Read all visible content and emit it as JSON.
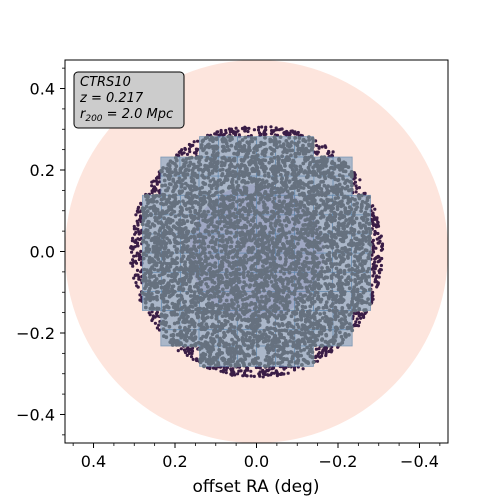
{
  "chart_data": {
    "type": "scatter",
    "title": "",
    "xlabel": "offset RA (deg)",
    "ylabel": "",
    "xlim": [
      0.47,
      -0.47
    ],
    "ylim": [
      -0.47,
      0.47
    ],
    "x_inverted": true,
    "x_ticks": [
      0.4,
      0.2,
      0.0,
      -0.2,
      -0.4
    ],
    "x_tick_labels": [
      "0.4",
      "0.2",
      "0.0",
      "−0.2",
      "−0.4"
    ],
    "y_ticks": [
      0.4,
      0.2,
      0.0,
      -0.2,
      -0.4
    ],
    "y_tick_labels": [
      "0.4",
      "0.2",
      "0.0",
      "−0.2",
      "−0.4"
    ],
    "grid": false,
    "annotation": {
      "line1": "CTRS10",
      "line2": "z = 0.217",
      "line3_prefix": "r",
      "line3_sub": "200",
      "line3_suffix": " = 2.0 Mpc",
      "position": "top-left"
    },
    "circles": [
      {
        "role": "outer-halo",
        "center": [
          0.0,
          0.0
        ],
        "radius": 0.47,
        "color": "#fde5dd"
      },
      {
        "role": "inner-core",
        "center": [
          0.0,
          0.0
        ],
        "radius": 0.165,
        "color": "#d3aec8"
      }
    ],
    "scatter_region": {
      "center": [
        0.0,
        0.0
      ],
      "radius": 0.31,
      "dark_color": "#3a1d46",
      "gray_color": "#66717f"
    },
    "footprint_rows": [
      {
        "y_bottom": 0.232,
        "y_top": 0.282,
        "x_left": 0.14,
        "x_right": -0.14
      },
      {
        "y_bottom": 0.185,
        "y_top": 0.232,
        "x_left": 0.235,
        "x_right": -0.235
      },
      {
        "y_bottom": 0.138,
        "y_top": 0.185,
        "x_left": 0.235,
        "x_right": -0.235
      },
      {
        "y_bottom": 0.09,
        "y_top": 0.138,
        "x_left": 0.28,
        "x_right": -0.28
      },
      {
        "y_bottom": 0.043,
        "y_top": 0.09,
        "x_left": 0.28,
        "x_right": -0.28
      },
      {
        "y_bottom": -0.004,
        "y_top": 0.043,
        "x_left": 0.28,
        "x_right": -0.28
      },
      {
        "y_bottom": -0.051,
        "y_top": -0.004,
        "x_left": 0.28,
        "x_right": -0.28
      },
      {
        "y_bottom": -0.098,
        "y_top": -0.051,
        "x_left": 0.28,
        "x_right": -0.28
      },
      {
        "y_bottom": -0.145,
        "y_top": -0.098,
        "x_left": 0.28,
        "x_right": -0.28
      },
      {
        "y_bottom": -0.192,
        "y_top": -0.145,
        "x_left": 0.235,
        "x_right": -0.235
      },
      {
        "y_bottom": -0.232,
        "y_top": -0.192,
        "x_left": 0.235,
        "x_right": -0.235
      },
      {
        "y_bottom": -0.282,
        "y_top": -0.232,
        "x_left": 0.14,
        "x_right": -0.14
      }
    ],
    "footprint_color": "#8aa5c1"
  }
}
